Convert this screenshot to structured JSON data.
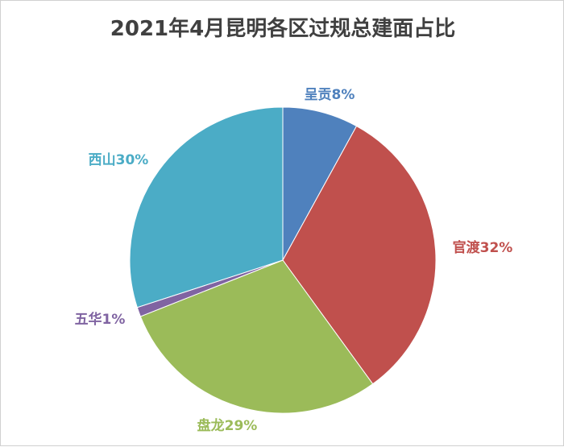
{
  "chart_data": {
    "type": "pie",
    "title": "2021年4月昆明各区过规总建面占比",
    "slices": [
      {
        "name": "呈贡",
        "value": 8,
        "label": "呈贡8%",
        "color": "#4f81bd"
      },
      {
        "name": "官渡",
        "value": 32,
        "label": "官渡32%",
        "color": "#c0504d"
      },
      {
        "name": "盘龙",
        "value": 29,
        "label": "盘龙29%",
        "color": "#9bbb59"
      },
      {
        "name": "五华",
        "value": 1,
        "label": "五华1%",
        "color": "#8064a2"
      },
      {
        "name": "西山",
        "value": 30,
        "label": "西山30%",
        "color": "#4bacc6"
      }
    ],
    "start_angle": "12 o'clock",
    "direction": "clockwise",
    "legend": "none"
  }
}
